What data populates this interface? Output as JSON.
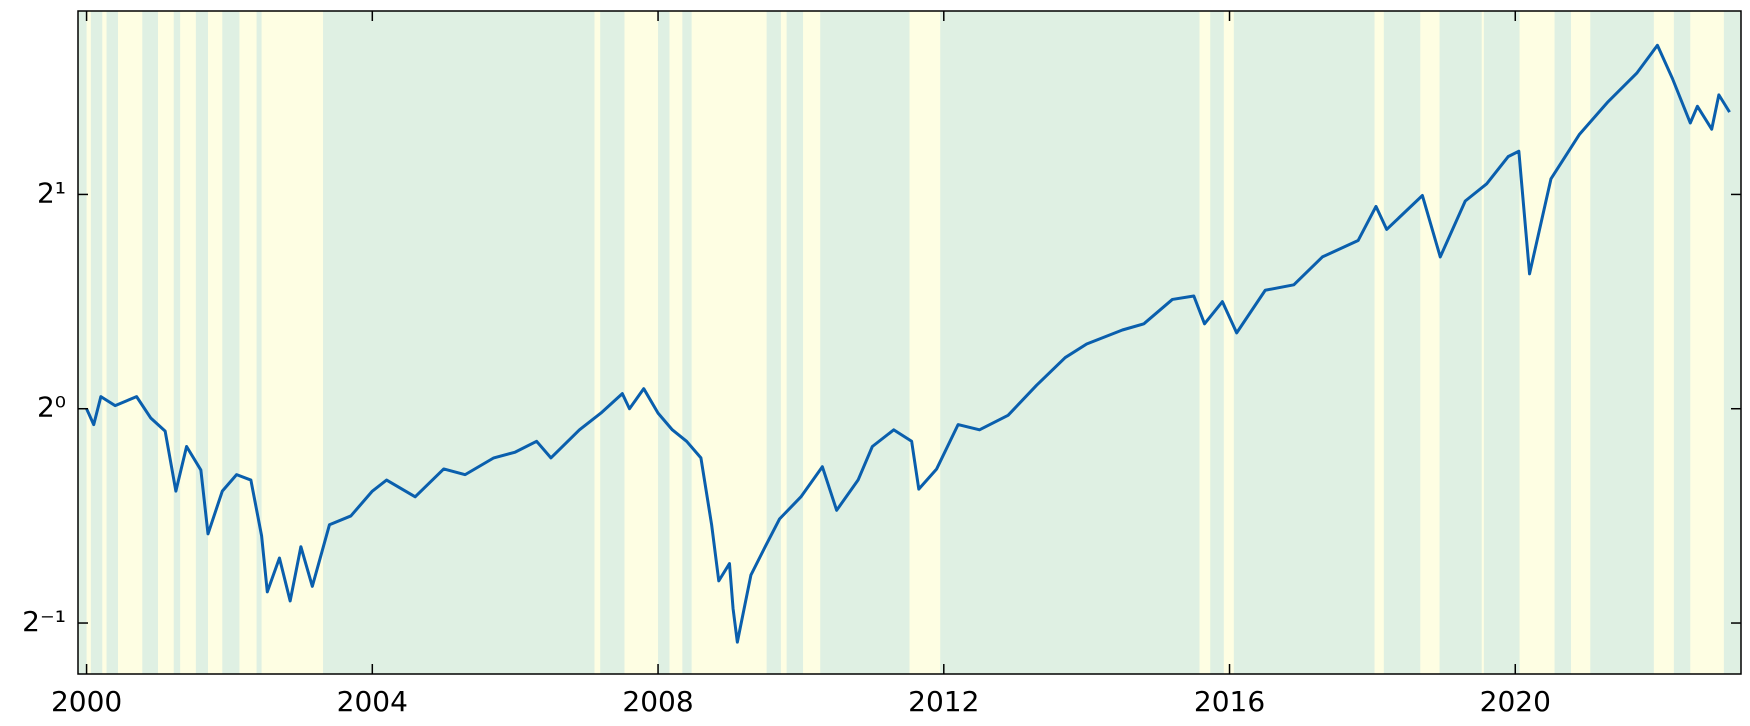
{
  "chart_data": {
    "type": "line",
    "x": [
      2000.0,
      2000.1,
      2000.2,
      2000.4,
      2000.7,
      2000.9,
      2001.1,
      2001.25,
      2001.4,
      2001.6,
      2001.7,
      2001.9,
      2002.1,
      2002.3,
      2002.45,
      2002.53,
      2002.7,
      2002.85,
      2003.0,
      2003.16,
      2003.4,
      2003.7,
      2004.0,
      2004.2,
      2004.6,
      2005.0,
      2005.3,
      2005.7,
      2006.0,
      2006.3,
      2006.5,
      2006.9,
      2007.2,
      2007.5,
      2007.6,
      2007.8,
      2008.0,
      2008.2,
      2008.4,
      2008.6,
      2008.75,
      2008.85,
      2009.0,
      2009.05,
      2009.11,
      2009.3,
      2009.5,
      2009.7,
      2010.0,
      2010.3,
      2010.5,
      2010.8,
      2011.0,
      2011.3,
      2011.55,
      2011.65,
      2011.9,
      2012.2,
      2012.5,
      2012.9,
      2013.3,
      2013.7,
      2014.0,
      2014.5,
      2014.8,
      2015.2,
      2015.5,
      2015.65,
      2015.9,
      2016.1,
      2016.5,
      2016.9,
      2017.3,
      2017.8,
      2018.05,
      2018.2,
      2018.7,
      2018.95,
      2019.3,
      2019.6,
      2019.9,
      2020.05,
      2020.2,
      2020.5,
      2020.9,
      2021.3,
      2021.7,
      2021.99,
      2022.2,
      2022.45,
      2022.55,
      2022.75,
      2022.85,
      2023.0
    ],
    "series": [
      {
        "color": "#0a5fad",
        "values": [
          1.0,
          0.95,
          1.04,
          1.01,
          1.04,
          0.97,
          0.93,
          0.766,
          0.885,
          0.82,
          0.667,
          0.766,
          0.808,
          0.794,
          0.663,
          0.553,
          0.617,
          0.537,
          0.64,
          0.563,
          0.687,
          0.707,
          0.766,
          0.794,
          0.752,
          0.823,
          0.808,
          0.853,
          0.869,
          0.9,
          0.853,
          0.934,
          0.986,
          1.05,
          1.0,
          1.067,
          0.986,
          0.934,
          0.9,
          0.853,
          0.687,
          0.573,
          0.606,
          0.524,
          0.47,
          0.584,
          0.64,
          0.7,
          0.752,
          0.829,
          0.72,
          0.794,
          0.885,
          0.934,
          0.9,
          0.771,
          0.823,
          0.95,
          0.934,
          0.979,
          1.079,
          1.18,
          1.233,
          1.29,
          1.316,
          1.424,
          1.44,
          1.316,
          1.414,
          1.278,
          1.467,
          1.493,
          1.634,
          1.723,
          1.924,
          1.786,
          1.993,
          1.634,
          1.958,
          2.07,
          2.26,
          2.3,
          1.547,
          2.104,
          2.43,
          2.7,
          2.96,
          3.24,
          2.91,
          2.52,
          2.66,
          2.47,
          2.76,
          2.61
        ]
      }
    ],
    "xlim": [
      1999.88,
      2023.16
    ],
    "xticks": [
      2000,
      2004,
      2008,
      2012,
      2016,
      2020
    ],
    "ylim": [
      0.424,
      3.62
    ],
    "log_base": 2,
    "yticks": [
      {
        "value": 0.5,
        "label": "2⁻¹"
      },
      {
        "value": 1,
        "label": "2⁰"
      },
      {
        "value": 2,
        "label": "2¹"
      }
    ],
    "background": "#dff0e3",
    "shaded_spans": {
      "color": "#fefee3",
      "spans": [
        [
          2000.0,
          2000.06
        ],
        [
          2000.22,
          2000.28
        ],
        [
          2000.44,
          2000.78
        ],
        [
          2001.0,
          2001.22
        ],
        [
          2001.31,
          2001.53
        ],
        [
          2001.7,
          2001.9
        ],
        [
          2002.14,
          2002.38
        ],
        [
          2002.45,
          2003.31
        ],
        [
          2007.11,
          2007.19
        ],
        [
          2007.53,
          2008.0
        ],
        [
          2008.16,
          2008.34
        ],
        [
          2008.47,
          2009.52
        ],
        [
          2009.72,
          2009.8
        ],
        [
          2010.03,
          2010.27
        ],
        [
          2011.52,
          2011.95
        ],
        [
          2015.58,
          2015.73
        ],
        [
          2015.92,
          2016.06
        ],
        [
          2018.03,
          2018.16
        ],
        [
          2018.67,
          2018.94
        ],
        [
          2019.53,
          2019.56
        ],
        [
          2020.06,
          2020.55
        ],
        [
          2020.78,
          2021.05
        ],
        [
          2021.94,
          2022.22
        ],
        [
          2022.45,
          2022.92
        ]
      ]
    }
  }
}
